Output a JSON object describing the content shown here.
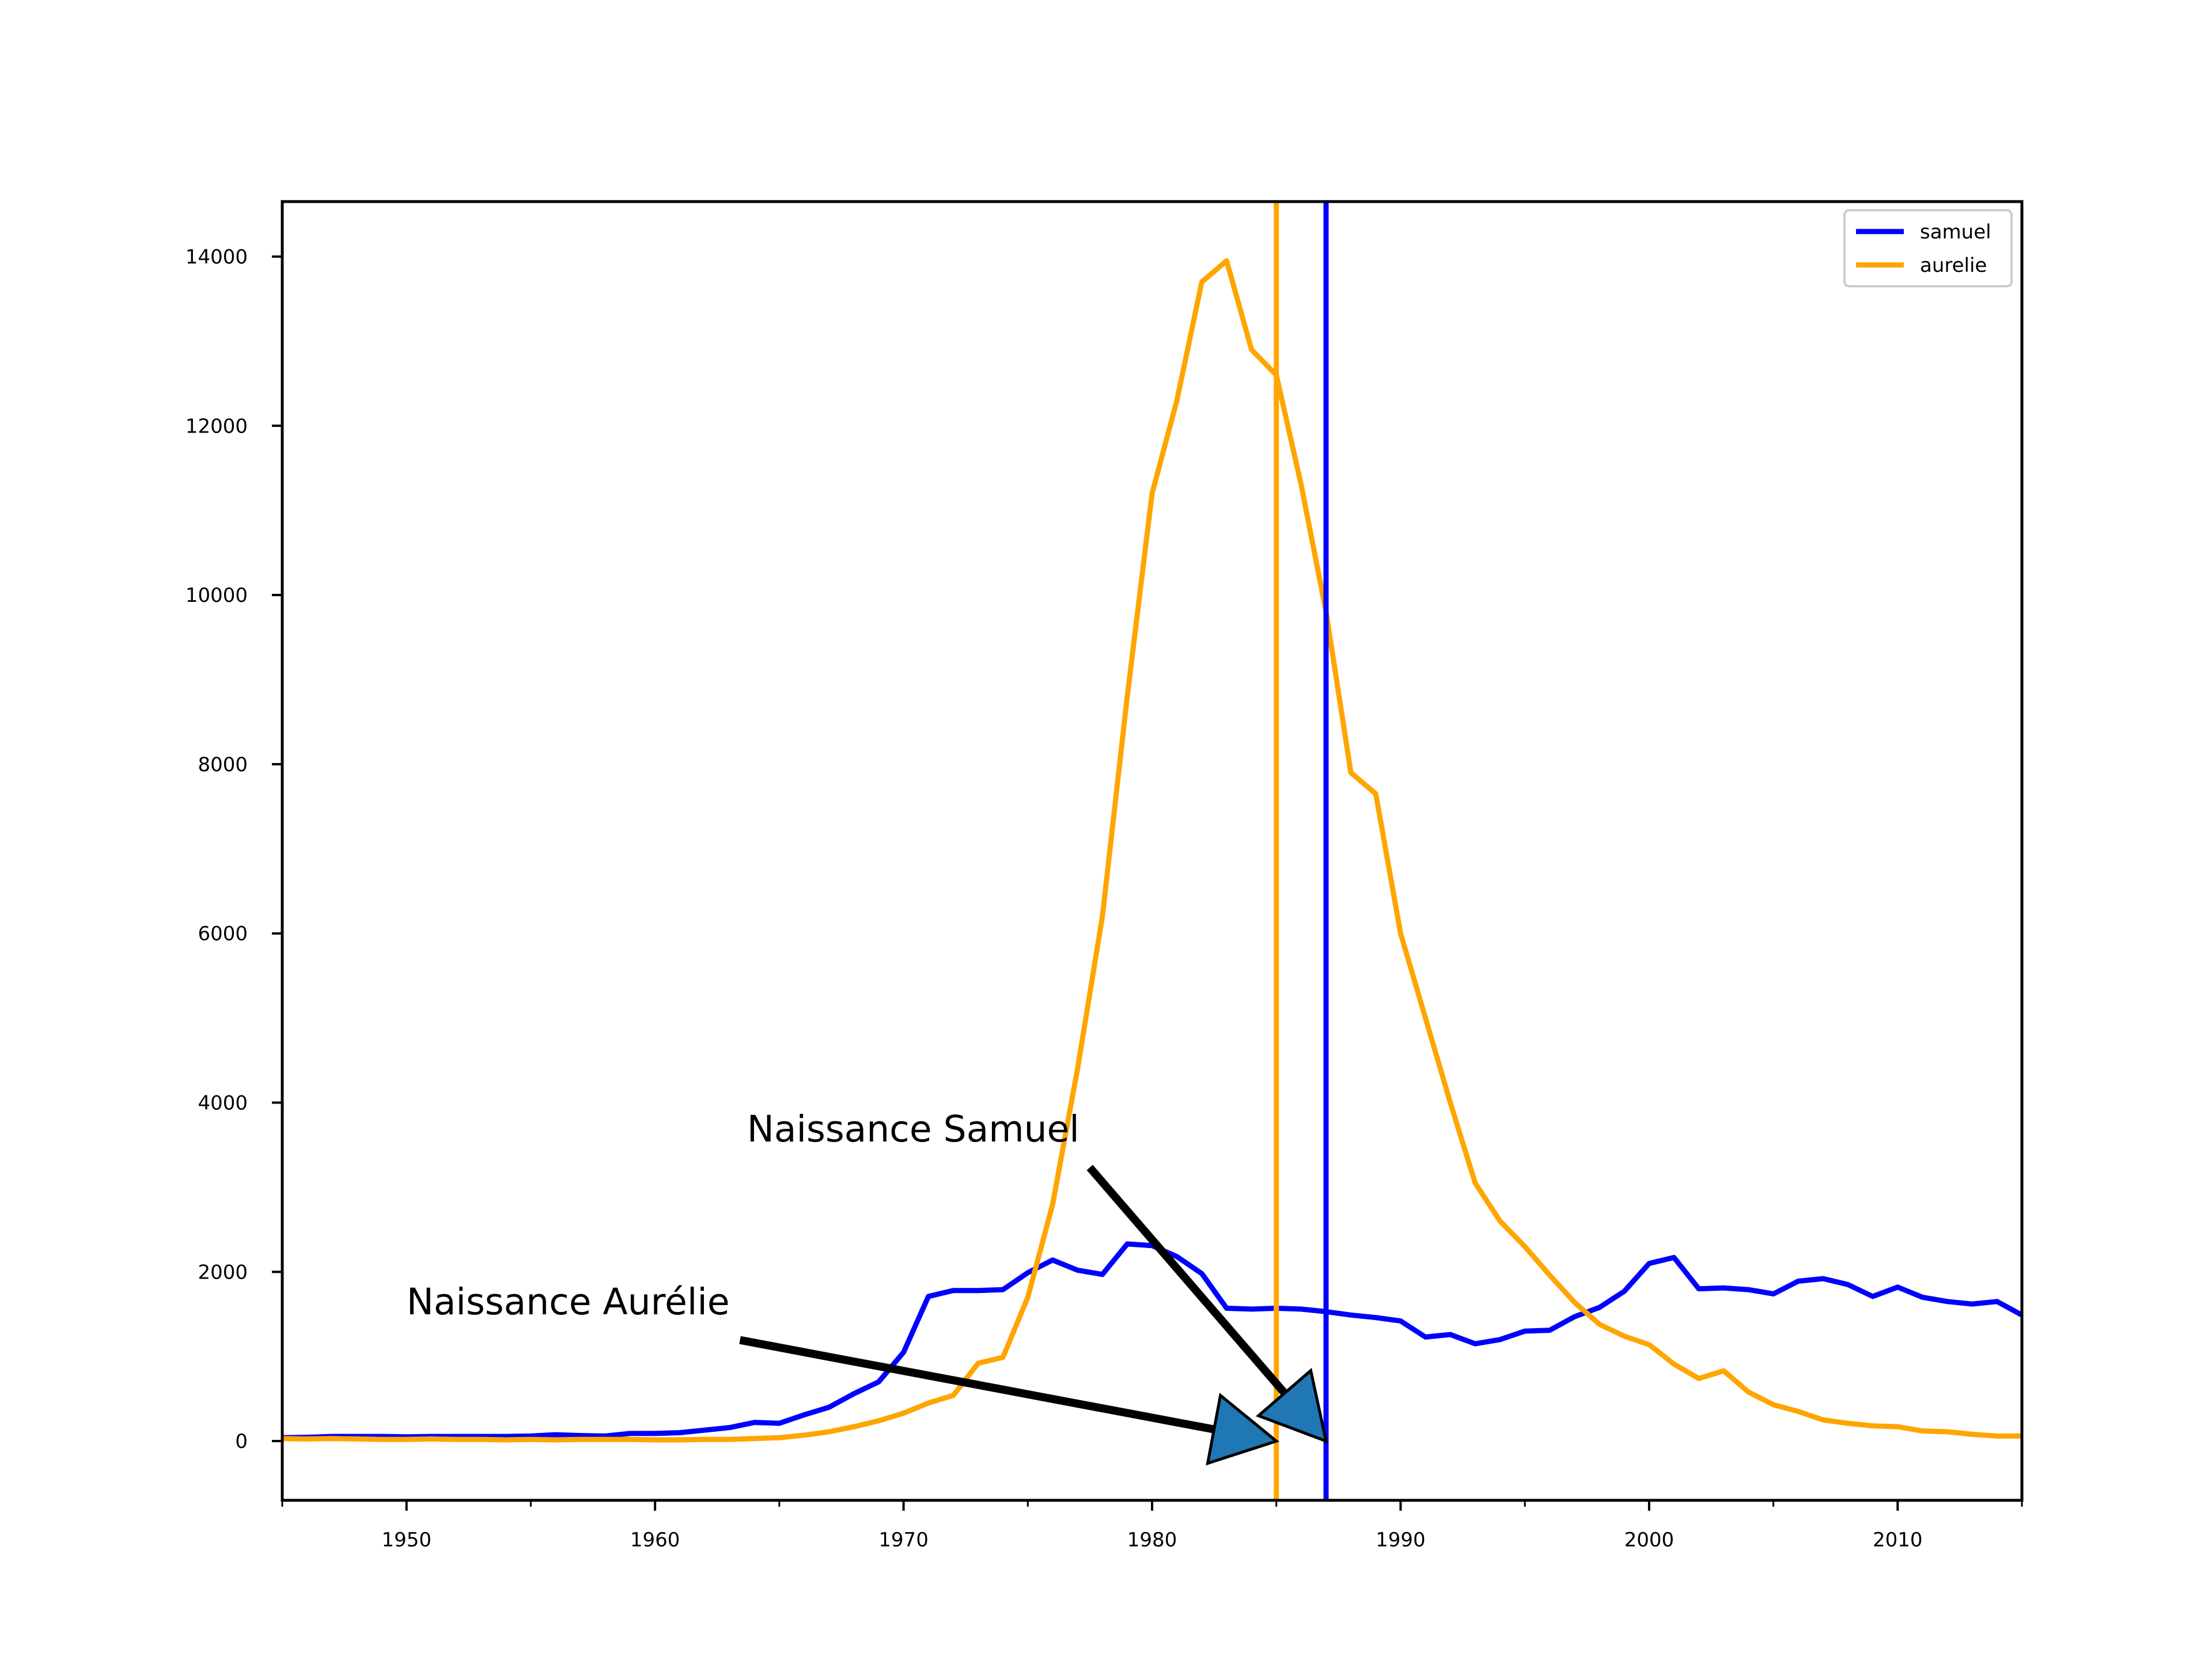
{
  "chart_data": {
    "type": "line",
    "title": "",
    "xlabel": "",
    "ylabel": "",
    "xlim": [
      1945,
      2015
    ],
    "ylim": [
      -700,
      14650
    ],
    "x_ticks": [
      1950,
      1960,
      1970,
      1980,
      1990,
      2000,
      2010
    ],
    "x_minor_ticks": [
      1945,
      1955,
      1965,
      1975,
      1985,
      1995,
      2005,
      2015
    ],
    "y_ticks": [
      0,
      2000,
      4000,
      6000,
      8000,
      10000,
      12000,
      14000
    ],
    "grid": false,
    "legend_position": "top-right",
    "x": [
      1945,
      1946,
      1947,
      1948,
      1949,
      1950,
      1951,
      1952,
      1953,
      1954,
      1955,
      1956,
      1957,
      1958,
      1959,
      1960,
      1961,
      1962,
      1963,
      1964,
      1965,
      1966,
      1967,
      1968,
      1969,
      1970,
      1971,
      1972,
      1973,
      1974,
      1975,
      1976,
      1977,
      1978,
      1979,
      1980,
      1981,
      1982,
      1983,
      1984,
      1985,
      1986,
      1987,
      1988,
      1989,
      1990,
      1991,
      1992,
      1993,
      1994,
      1995,
      1996,
      1997,
      1998,
      1999,
      2000,
      2001,
      2002,
      2003,
      2004,
      2005,
      2006,
      2007,
      2008,
      2009,
      2010,
      2011,
      2012,
      2013,
      2014,
      2015
    ],
    "series": [
      {
        "name": "samuel",
        "color": "#0000ff",
        "values": [
          40,
          45,
          55,
          55,
          55,
          50,
          55,
          55,
          55,
          55,
          60,
          75,
          65,
          60,
          90,
          90,
          100,
          130,
          160,
          220,
          210,
          310,
          400,
          560,
          700,
          1050,
          1710,
          1780,
          1780,
          1790,
          1990,
          2140,
          2020,
          1970,
          2330,
          2310,
          2180,
          1980,
          1570,
          1560,
          1570,
          1560,
          1530,
          1490,
          1460,
          1420,
          1230,
          1260,
          1150,
          1200,
          1300,
          1310,
          1470,
          1580,
          1770,
          2100,
          2170,
          1800,
          1810,
          1790,
          1740,
          1890,
          1920,
          1850,
          1710,
          1820,
          1700,
          1650,
          1620,
          1650,
          1490
        ]
      },
      {
        "name": "aurelie",
        "color": "#ffa500",
        "values": [
          30,
          25,
          30,
          25,
          20,
          20,
          25,
          20,
          20,
          15,
          20,
          15,
          20,
          20,
          20,
          15,
          15,
          20,
          20,
          30,
          40,
          70,
          110,
          170,
          240,
          330,
          450,
          540,
          920,
          990,
          1700,
          2800,
          4400,
          6200,
          8800,
          11200,
          12300,
          13700,
          13950,
          12900,
          12600,
          11300,
          9800,
          7900,
          7650,
          6000,
          5000,
          4000,
          3050,
          2600,
          2300,
          1960,
          1640,
          1380,
          1240,
          1140,
          910,
          740,
          830,
          580,
          430,
          350,
          250,
          210,
          180,
          170,
          120,
          110,
          80,
          60,
          60
        ]
      }
    ],
    "vertical_lines": [
      {
        "name": "aurelie",
        "x": 1985,
        "color": "#ffa500"
      },
      {
        "name": "samuel",
        "x": 1987,
        "color": "#0000ff"
      }
    ],
    "annotations": [
      {
        "text": "Naissance Aurélie",
        "text_xy": [
          1950,
          1500
        ],
        "target_xy": [
          1985,
          0
        ],
        "arrow_fill": "#1f77b4"
      },
      {
        "text": "Naissance Samuel",
        "text_xy": [
          1963.7,
          3540
        ],
        "target_xy": [
          1987,
          0
        ],
        "arrow_fill": "#1f77b4"
      }
    ]
  }
}
